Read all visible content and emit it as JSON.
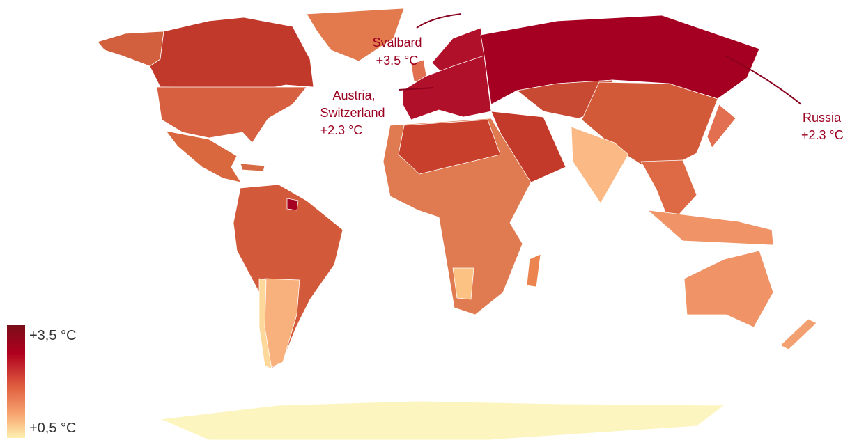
{
  "annotations": [
    {
      "lines": [
        "Svalbard",
        "+3.5 °C"
      ]
    },
    {
      "lines": [
        "Austria,",
        "Switzerland",
        "+2.3 °C"
      ]
    },
    {
      "lines": [
        "Russia",
        "+2.3 °C"
      ]
    }
  ],
  "legend": {
    "max_label": "+3,5 °C",
    "min_label": "+0,5 °C"
  }
}
